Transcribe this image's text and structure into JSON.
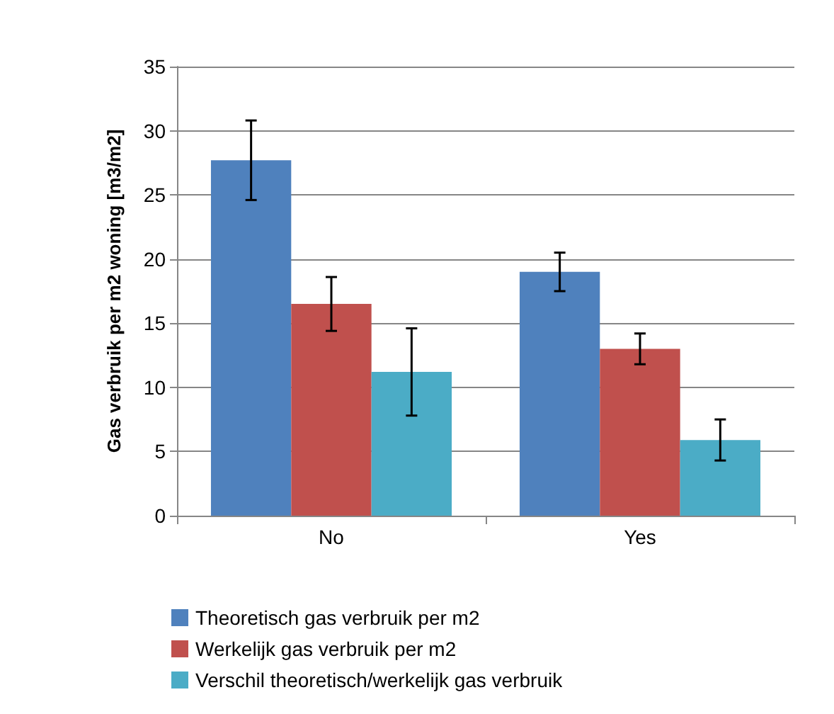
{
  "chart_data": {
    "type": "bar",
    "ylabel": "Gas verbruik per m2 woning [m3/m2]",
    "categories": [
      "No",
      "Yes"
    ],
    "series": [
      {
        "name": "Theoretisch gas verbruik per m2",
        "color": "#4f81bd",
        "values": [
          27.7,
          19.0
        ],
        "errors": [
          3.1,
          1.5
        ]
      },
      {
        "name": "Werkelijk gas verbruik per m2",
        "color": "#c0504d",
        "values": [
          16.5,
          13.0
        ],
        "errors": [
          2.1,
          1.2
        ]
      },
      {
        "name": "Verschil theoretisch/werkelijk gas verbruik",
        "color": "#4bacc6",
        "values": [
          11.2,
          5.9
        ],
        "errors": [
          3.4,
          1.6
        ]
      }
    ],
    "ylim": [
      0,
      35
    ],
    "yticks": [
      0,
      5,
      10,
      15,
      20,
      25,
      30,
      35
    ],
    "grid": "y",
    "legend": "bottom"
  }
}
